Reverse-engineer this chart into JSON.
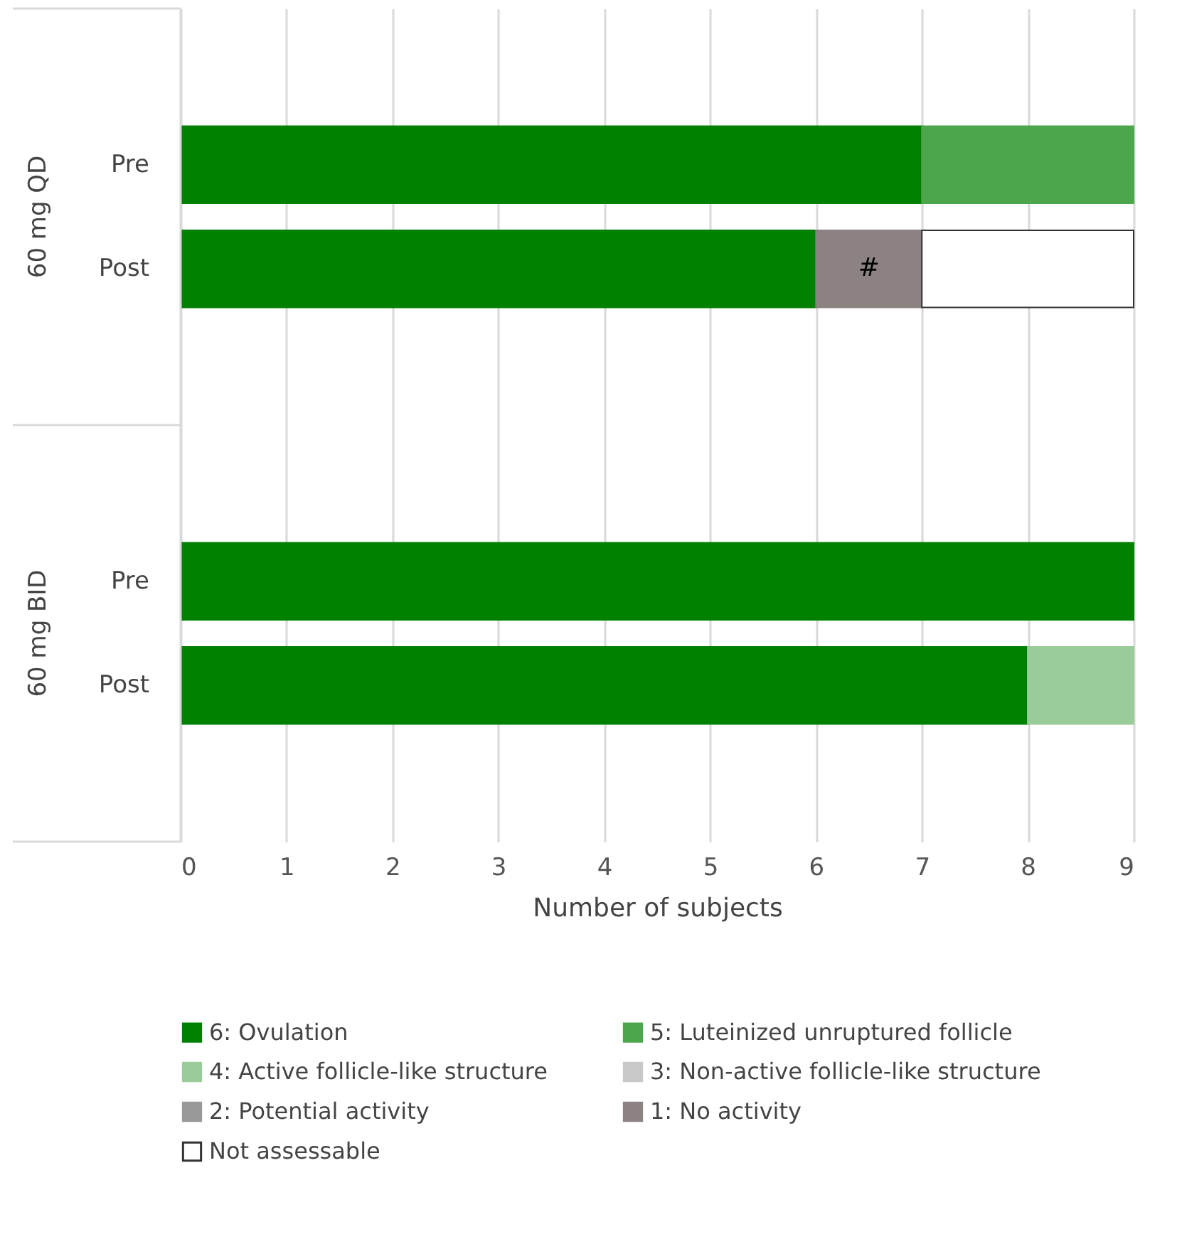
{
  "chart_data": {
    "type": "bar",
    "orientation": "horizontal",
    "stacked": true,
    "categories": [
      "Pre",
      "Post",
      "Pre",
      "Post"
    ],
    "series": [
      {
        "name": "6: Ovulation",
        "color": "#008000",
        "values": [
          7,
          6,
          9,
          8
        ]
      },
      {
        "name": "5: Luteinized unruptured follicle",
        "color": "#4ca64c",
        "values": [
          2,
          0,
          0,
          0
        ]
      },
      {
        "name": "4: Active follicle-like structure",
        "color": "#99cc99",
        "values": [
          0,
          0,
          0,
          1
        ]
      },
      {
        "name": "3: Non-active follicle-like structure",
        "color": "#c8c8c8",
        "values": [
          0,
          0,
          0,
          0
        ]
      },
      {
        "name": "2: Potential activity",
        "color": "#999999",
        "values": [
          0,
          0,
          0,
          0
        ]
      },
      {
        "name": "1: No activity",
        "color": "#8c8282",
        "values": [
          0,
          1,
          0,
          0
        ],
        "value_labels": [
          null,
          "#",
          null,
          null
        ]
      },
      {
        "name": "Not assessable",
        "color": "#ffffff",
        "line_style": "dashed",
        "values": [
          0,
          2,
          0,
          0
        ]
      }
    ],
    "annotations": [
      "60 mg QD",
      "60 mg BID"
    ],
    "xlabel": "Number of subjects",
    "xlim": [
      0,
      9
    ],
    "xticks": [
      0,
      1,
      2,
      3,
      4,
      5,
      6,
      7,
      8,
      9
    ],
    "grid": "x",
    "tick_labels": "x",
    "legend": "bottom"
  }
}
